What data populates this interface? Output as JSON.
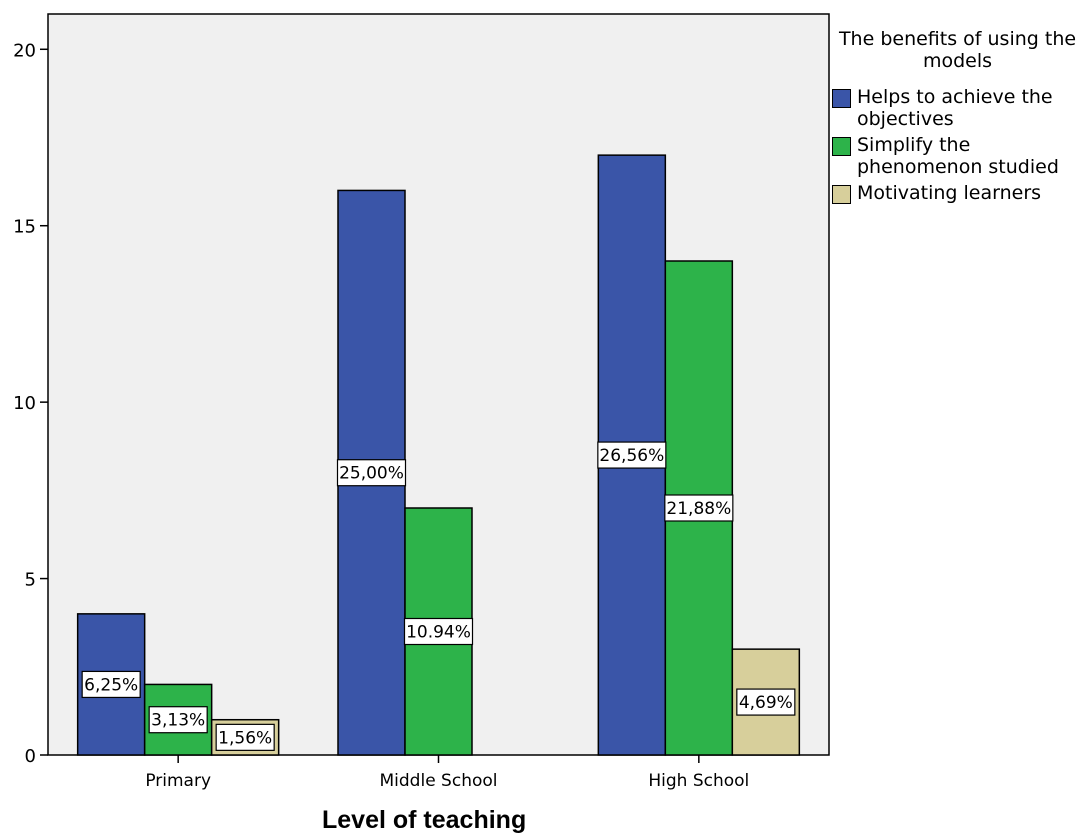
{
  "chart_data": {
    "type": "bar",
    "categories": [
      "Primary",
      "Middle School",
      "High School"
    ],
    "series": [
      {
        "name": "Helps to achieve the objectives",
        "values": [
          4,
          16,
          17
        ],
        "color": "#3a55a8",
        "labels": [
          "6,25%",
          "25,00%",
          "26,56%"
        ]
      },
      {
        "name": "Simplify the phenomenon studied",
        "values": [
          2,
          7,
          14
        ],
        "color": "#2db34a",
        "labels": [
          "3,13%",
          "10.94%",
          "21,88%"
        ]
      },
      {
        "name": "Motivating learners",
        "values": [
          1,
          0,
          3
        ],
        "color": "#d7cf9b",
        "labels": [
          "1,56%",
          "",
          "4,69%"
        ]
      }
    ],
    "xlabel": "Level of teaching",
    "ylabel": "",
    "ylim": [
      0,
      21
    ],
    "yticks": [
      "0",
      "5",
      "10",
      "15",
      "20"
    ],
    "legend": {
      "title": "The benefits of using the models",
      "position": "right"
    },
    "grid": false,
    "background": "#f0f0f0"
  }
}
